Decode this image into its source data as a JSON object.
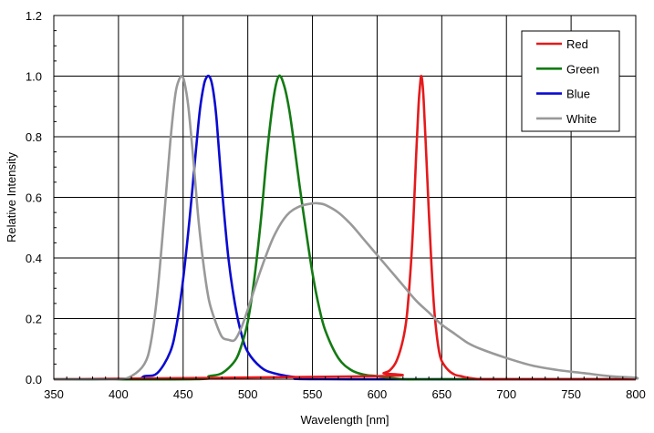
{
  "chart_data": {
    "type": "line",
    "title": "",
    "xlabel": "Wavelength [nm]",
    "ylabel": "Relative Intensity",
    "xlim": [
      350,
      800
    ],
    "ylim": [
      0,
      1.2
    ],
    "xticks": [
      "350",
      "400",
      "450",
      "500",
      "550",
      "600",
      "650",
      "700",
      "750",
      "800"
    ],
    "yticks": [
      "0.0",
      "0.2",
      "0.4",
      "0.6",
      "0.8",
      "1.0",
      "1.2"
    ],
    "grid": true,
    "legend_position": "top-right",
    "series": [
      {
        "name": "Red",
        "color": "#e41a1c",
        "x": [
          600,
          605,
          610,
          615,
          620,
          623,
          626,
          628,
          630,
          632,
          633,
          634,
          635,
          636,
          638,
          640,
          642,
          644,
          646,
          648,
          650,
          655,
          660,
          665,
          670,
          680,
          700
        ],
        "y": [
          0.01,
          0.02,
          0.03,
          0.06,
          0.13,
          0.21,
          0.37,
          0.52,
          0.72,
          0.9,
          0.96,
          1.0,
          0.98,
          0.92,
          0.74,
          0.55,
          0.38,
          0.24,
          0.15,
          0.09,
          0.06,
          0.03,
          0.015,
          0.01,
          0.005,
          0.0,
          0.0
        ]
      },
      {
        "name": "Green",
        "color": "#137a13",
        "x": [
          460,
          470,
          480,
          490,
          495,
          500,
          505,
          510,
          515,
          520,
          524,
          528,
          532,
          536,
          540,
          545,
          550,
          555,
          560,
          570,
          580,
          590,
          600,
          620,
          650
        ],
        "y": [
          0.0,
          0.01,
          0.02,
          0.06,
          0.11,
          0.19,
          0.33,
          0.52,
          0.75,
          0.93,
          1.0,
          0.97,
          0.89,
          0.77,
          0.64,
          0.49,
          0.35,
          0.24,
          0.16,
          0.07,
          0.03,
          0.015,
          0.01,
          0.0,
          0.0
        ]
      },
      {
        "name": "Blue",
        "color": "#0a0ad0",
        "x": [
          410,
          420,
          430,
          440,
          445,
          450,
          455,
          460,
          463,
          466,
          468,
          470,
          472,
          474,
          476,
          480,
          485,
          490,
          495,
          500,
          510,
          520,
          540,
          560
        ],
        "y": [
          0.0,
          0.01,
          0.02,
          0.09,
          0.18,
          0.33,
          0.53,
          0.76,
          0.89,
          0.97,
          0.995,
          1.0,
          0.98,
          0.93,
          0.85,
          0.63,
          0.4,
          0.25,
          0.15,
          0.09,
          0.04,
          0.02,
          0.005,
          0.0
        ]
      },
      {
        "name": "White",
        "color": "#999999",
        "x": [
          380,
          400,
          410,
          420,
          425,
          430,
          435,
          440,
          444,
          447,
          449,
          451,
          454,
          458,
          462,
          466,
          470,
          475,
          480,
          485,
          490,
          495,
          500,
          510,
          520,
          530,
          540,
          550,
          555,
          560,
          570,
          580,
          590,
          600,
          610,
          620,
          630,
          640,
          650,
          660,
          670,
          680,
          700,
          720,
          740,
          760,
          780,
          800
        ],
        "y": [
          0.0,
          0.0,
          0.01,
          0.05,
          0.12,
          0.28,
          0.52,
          0.78,
          0.94,
          0.99,
          1.0,
          0.98,
          0.9,
          0.72,
          0.52,
          0.37,
          0.26,
          0.19,
          0.14,
          0.13,
          0.13,
          0.17,
          0.23,
          0.36,
          0.47,
          0.54,
          0.57,
          0.58,
          0.58,
          0.575,
          0.55,
          0.51,
          0.46,
          0.41,
          0.36,
          0.31,
          0.26,
          0.22,
          0.18,
          0.15,
          0.12,
          0.1,
          0.07,
          0.045,
          0.03,
          0.02,
          0.01,
          0.005
        ]
      }
    ]
  }
}
